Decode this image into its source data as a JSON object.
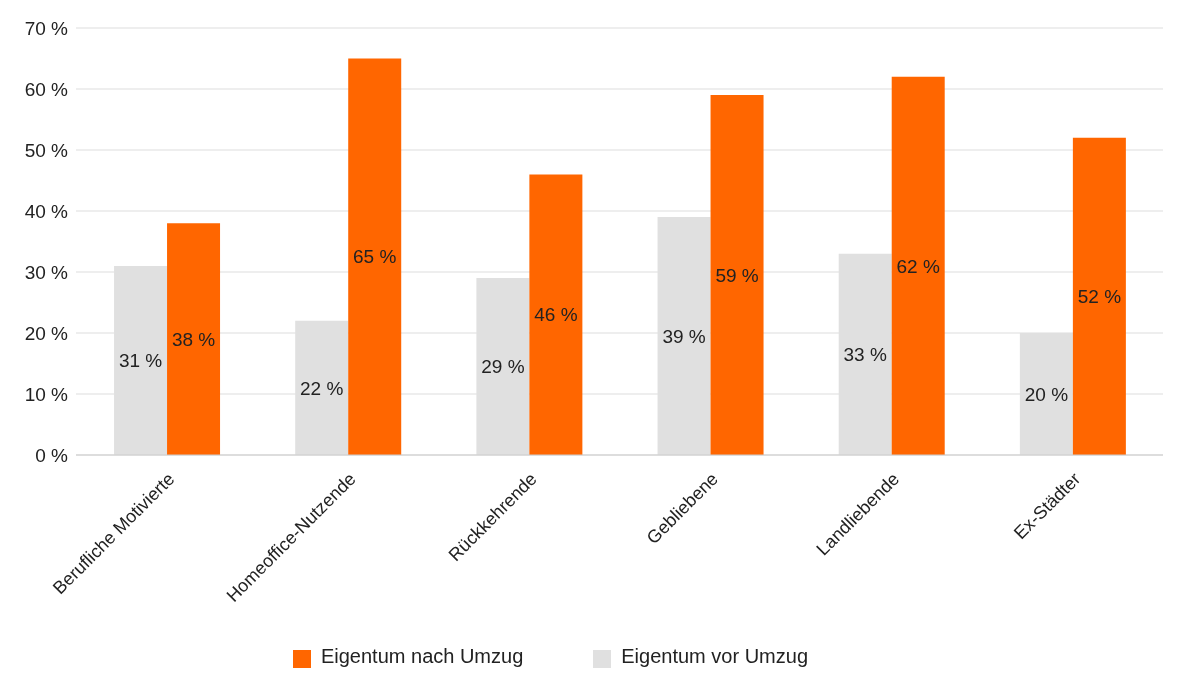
{
  "chart_data": {
    "type": "bar",
    "categories": [
      "Berufliche Motivierte",
      "Homeoffice-Nutzende",
      "Rückkehrende",
      "Gebliebene",
      "Landliebende",
      "Ex-Städter"
    ],
    "series": [
      {
        "name": "Eigentum vor Umzug",
        "color": "#e0e0e0",
        "values": [
          31,
          22,
          29,
          39,
          33,
          20
        ],
        "value_labels": [
          "31 %",
          "22 %",
          "29 %",
          "39 %",
          "33 %",
          "20 %"
        ]
      },
      {
        "name": "Eigentum nach Umzug",
        "color": "#ff6600",
        "values": [
          38,
          65,
          46,
          59,
          62,
          52
        ],
        "value_labels": [
          "38 %",
          "65 %",
          "46 %",
          "59 %",
          "62 %",
          "52 %"
        ]
      }
    ],
    "ylim": [
      0,
      70
    ],
    "yticks": [
      {
        "value": 0,
        "label": "0 %"
      },
      {
        "value": 10,
        "label": "10 %"
      },
      {
        "value": 20,
        "label": "20 %"
      },
      {
        "value": 30,
        "label": "30 %"
      },
      {
        "value": 40,
        "label": "40 %"
      },
      {
        "value": 50,
        "label": "50 %"
      },
      {
        "value": 60,
        "label": "60 %"
      },
      {
        "value": 70,
        "label": "70 %"
      }
    ],
    "grid": "y",
    "legend": "bottom"
  }
}
